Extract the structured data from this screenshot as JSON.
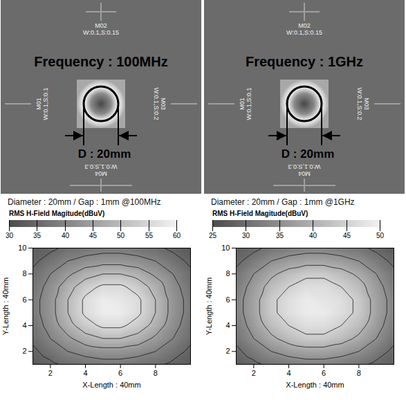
{
  "photos": [
    {
      "title": "Frequency : 100MHz",
      "diameter_label": "D : 20mm",
      "markers": [
        {
          "name": "M01",
          "spec": "W:0.1,S:0.1"
        },
        {
          "name": "M02",
          "spec": "W:0.1,S:0.15"
        },
        {
          "name": "M03",
          "spec": "W:0.1,S:0.2"
        },
        {
          "name": "M04",
          "spec": "W:0.1,S:0.3"
        }
      ]
    },
    {
      "title": "Frequency : 1GHz",
      "diameter_label": "D : 20mm",
      "markers": [
        {
          "name": "M01",
          "spec": "W:0.1,S:0.1"
        },
        {
          "name": "M02",
          "spec": "W:0.1,S:0.15"
        },
        {
          "name": "M03",
          "spec": "W:0.1,S:0.2"
        },
        {
          "name": "M04",
          "spec": "W:0.1,S:0.3"
        }
      ]
    }
  ],
  "chart_data": [
    {
      "type": "heatmap",
      "annotation": "Diameter : 20mm / Gap : 1mm @100MHz",
      "xlabel": "X-Length : 40mm",
      "ylabel": "Y-Length : 40mm",
      "x": [
        1,
        2,
        3,
        4,
        5,
        6,
        7,
        8,
        9,
        10
      ],
      "y": [
        1,
        2,
        3,
        4,
        5,
        6,
        7,
        8,
        9,
        10
      ],
      "xlim": [
        1,
        10
      ],
      "xticks": [
        2,
        4,
        6,
        8
      ],
      "ylim": [
        1,
        10
      ],
      "yticks": [
        2,
        4,
        6,
        8,
        10
      ],
      "cells": [
        [
          32,
          34,
          36,
          37,
          38,
          38,
          37,
          36,
          34,
          33
        ],
        [
          34,
          37,
          40,
          42,
          43,
          43,
          42,
          40,
          37,
          34
        ],
        [
          36,
          40,
          44,
          48,
          50,
          50,
          48,
          44,
          40,
          36
        ],
        [
          37,
          42,
          48,
          53,
          56,
          56,
          53,
          48,
          42,
          37
        ],
        [
          38,
          43,
          50,
          56,
          59,
          59,
          56,
          50,
          43,
          38
        ],
        [
          38,
          43,
          50,
          56,
          59,
          58,
          56,
          50,
          43,
          38
        ],
        [
          37,
          42,
          48,
          53,
          56,
          56,
          53,
          48,
          42,
          37
        ],
        [
          36,
          40,
          44,
          48,
          50,
          50,
          48,
          44,
          40,
          36
        ],
        [
          34,
          37,
          40,
          42,
          43,
          43,
          42,
          40,
          37,
          34
        ],
        [
          33,
          34,
          36,
          37,
          38,
          38,
          37,
          36,
          34,
          32
        ]
      ],
      "colorbar_label": "RMS H-Field Magitude(dBuV)",
      "colorbar_range": [
        30,
        60
      ],
      "colorbar_ticks": [
        30,
        35,
        40,
        45,
        50,
        55,
        60
      ]
    },
    {
      "type": "heatmap",
      "annotation": "Diameter : 20mm / Gap : 1mm @1GHz",
      "xlabel": "X-Length : 40mm",
      "ylabel": "Y-Length : 40mm",
      "x": [
        1,
        2,
        3,
        4,
        5,
        6,
        7,
        8,
        9,
        10
      ],
      "y": [
        1,
        2,
        3,
        4,
        5,
        6,
        7,
        8,
        9,
        10
      ],
      "xlim": [
        1,
        10
      ],
      "xticks": [
        2,
        4,
        6,
        8
      ],
      "ylim": [
        1,
        10
      ],
      "yticks": [
        2,
        4,
        6,
        8,
        10
      ],
      "cells": [
        [
          27,
          29,
          31,
          32,
          33,
          33,
          32,
          31,
          29,
          28
        ],
        [
          29,
          32,
          35,
          37,
          38,
          38,
          37,
          35,
          32,
          29
        ],
        [
          31,
          35,
          39,
          42,
          44,
          44,
          42,
          39,
          35,
          31
        ],
        [
          32,
          37,
          42,
          45,
          47,
          47,
          45,
          42,
          37,
          32
        ],
        [
          33,
          38,
          44,
          47,
          49,
          49,
          47,
          44,
          38,
          33
        ],
        [
          33,
          38,
          44,
          47,
          49,
          48,
          47,
          44,
          38,
          33
        ],
        [
          32,
          37,
          42,
          45,
          47,
          47,
          45,
          42,
          37,
          32
        ],
        [
          31,
          35,
          39,
          42,
          44,
          44,
          42,
          39,
          35,
          31
        ],
        [
          29,
          32,
          35,
          37,
          38,
          38,
          37,
          35,
          32,
          29
        ],
        [
          28,
          29,
          31,
          32,
          33,
          33,
          32,
          31,
          29,
          27
        ]
      ],
      "colorbar_label": "RMS H-Field Magitude(dBuV)",
      "colorbar_range": [
        25,
        50
      ],
      "colorbar_ticks": [
        25,
        30,
        35,
        40,
        45,
        50
      ]
    }
  ]
}
